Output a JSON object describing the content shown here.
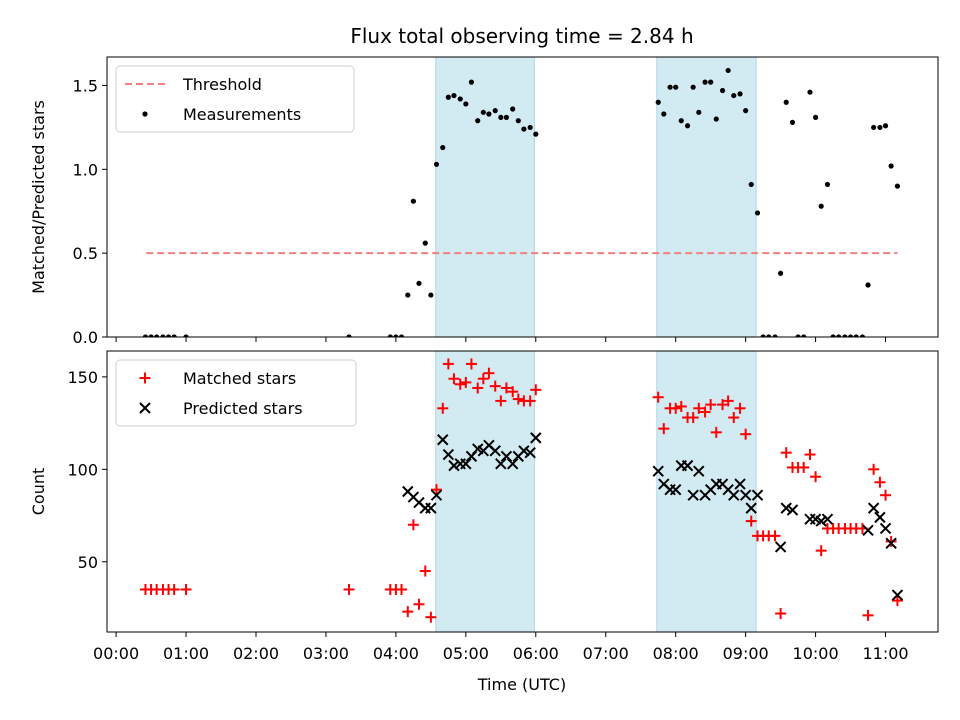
{
  "chart_data": {
    "type": "scatter",
    "title": "Flux total observing time = 2.84 h",
    "xlabel": "Time (UTC)",
    "x_tick_labels": [
      "00:00",
      "01:00",
      "02:00",
      "03:00",
      "04:00",
      "05:00",
      "06:00",
      "07:00",
      "08:00",
      "09:00",
      "10:00",
      "11:00"
    ],
    "xlim": [
      -0.13,
      11.75
    ],
    "shaded_intervals": [
      [
        4.57,
        5.98
      ],
      [
        7.73,
        9.15
      ]
    ],
    "colors": {
      "threshold": "#f08080",
      "measurements": "#000000",
      "matched": "#ff0000",
      "predicted": "#000000",
      "shade": "#add8e6"
    },
    "panels": [
      {
        "ylabel": "Matched/Predicted stars",
        "ylim": [
          0,
          1.67
        ],
        "y_ticks": [
          0.0,
          0.5,
          1.0,
          1.5
        ],
        "y_tick_labels": [
          "0.0",
          "0.5",
          "1.0",
          "1.5"
        ],
        "legend": [
          "Threshold",
          "Measurements"
        ],
        "threshold": {
          "name": "Threshold",
          "value": 0.5,
          "x_range": [
            0.43,
            11.17
          ]
        },
        "series": [
          {
            "name": "Measurements",
            "marker": "dot",
            "points": [
              [
                0.42,
                0
              ],
              [
                0.5,
                0
              ],
              [
                0.58,
                0
              ],
              [
                0.67,
                0
              ],
              [
                0.75,
                0
              ],
              [
                0.83,
                0
              ],
              [
                1.0,
                0
              ],
              [
                3.33,
                0
              ],
              [
                3.92,
                0
              ],
              [
                4.0,
                0
              ],
              [
                4.08,
                0
              ],
              [
                4.17,
                0.25
              ],
              [
                4.25,
                0.81
              ],
              [
                4.33,
                0.32
              ],
              [
                4.42,
                0.56
              ],
              [
                4.5,
                0.25
              ],
              [
                4.58,
                1.03
              ],
              [
                4.67,
                1.13
              ],
              [
                4.75,
                1.43
              ],
              [
                4.83,
                1.44
              ],
              [
                4.92,
                1.42
              ],
              [
                5.0,
                1.39
              ],
              [
                5.08,
                1.52
              ],
              [
                5.17,
                1.29
              ],
              [
                5.25,
                1.34
              ],
              [
                5.33,
                1.33
              ],
              [
                5.42,
                1.35
              ],
              [
                5.5,
                1.31
              ],
              [
                5.58,
                1.31
              ],
              [
                5.67,
                1.36
              ],
              [
                5.75,
                1.29
              ],
              [
                5.83,
                1.24
              ],
              [
                5.92,
                1.25
              ],
              [
                6.0,
                1.21
              ],
              [
                7.75,
                1.4
              ],
              [
                7.83,
                1.33
              ],
              [
                7.92,
                1.49
              ],
              [
                8.0,
                1.49
              ],
              [
                8.08,
                1.29
              ],
              [
                8.17,
                1.26
              ],
              [
                8.25,
                1.49
              ],
              [
                8.33,
                1.34
              ],
              [
                8.42,
                1.52
              ],
              [
                8.5,
                1.52
              ],
              [
                8.58,
                1.3
              ],
              [
                8.67,
                1.47
              ],
              [
                8.75,
                1.59
              ],
              [
                8.83,
                1.44
              ],
              [
                8.92,
                1.45
              ],
              [
                9.0,
                1.35
              ],
              [
                9.08,
                0.91
              ],
              [
                9.17,
                0.74
              ],
              [
                9.25,
                0
              ],
              [
                9.33,
                0
              ],
              [
                9.42,
                0
              ],
              [
                9.5,
                0.38
              ],
              [
                9.58,
                1.4
              ],
              [
                9.67,
                1.28
              ],
              [
                9.75,
                0
              ],
              [
                9.83,
                0
              ],
              [
                9.92,
                1.46
              ],
              [
                10.0,
                1.31
              ],
              [
                10.08,
                0.78
              ],
              [
                10.17,
                0.91
              ],
              [
                10.25,
                0
              ],
              [
                10.33,
                0
              ],
              [
                10.42,
                0
              ],
              [
                10.5,
                0
              ],
              [
                10.58,
                0
              ],
              [
                10.67,
                0
              ],
              [
                10.75,
                0.31
              ],
              [
                10.83,
                1.25
              ],
              [
                10.92,
                1.25
              ],
              [
                11.0,
                1.26
              ],
              [
                11.08,
                1.02
              ],
              [
                11.17,
                0.9
              ]
            ]
          }
        ]
      },
      {
        "ylabel": "Count",
        "ylim": [
          12,
          164
        ],
        "y_ticks": [
          50,
          100,
          150
        ],
        "y_tick_labels": [
          "50",
          "100",
          "150"
        ],
        "legend": [
          "Matched stars",
          "Predicted stars"
        ],
        "series": [
          {
            "name": "Matched stars",
            "marker": "plus",
            "points": [
              [
                0.42,
                35
              ],
              [
                0.5,
                35
              ],
              [
                0.58,
                35
              ],
              [
                0.67,
                35
              ],
              [
                0.75,
                35
              ],
              [
                0.83,
                35
              ],
              [
                1.0,
                35
              ],
              [
                3.33,
                35
              ],
              [
                3.92,
                35
              ],
              [
                4.0,
                35
              ],
              [
                4.08,
                35
              ],
              [
                4.17,
                23
              ],
              [
                4.25,
                70
              ],
              [
                4.33,
                27
              ],
              [
                4.42,
                45
              ],
              [
                4.5,
                20
              ],
              [
                4.58,
                89
              ],
              [
                4.67,
                133
              ],
              [
                4.75,
                157
              ],
              [
                4.83,
                149
              ],
              [
                4.92,
                146
              ],
              [
                5.0,
                147
              ],
              [
                5.08,
                157
              ],
              [
                5.17,
                144
              ],
              [
                5.25,
                149
              ],
              [
                5.33,
                152
              ],
              [
                5.42,
                145
              ],
              [
                5.5,
                137
              ],
              [
                5.58,
                144
              ],
              [
                5.67,
                142
              ],
              [
                5.75,
                138
              ],
              [
                5.83,
                137
              ],
              [
                5.92,
                137
              ],
              [
                6.0,
                143
              ],
              [
                7.75,
                139
              ],
              [
                7.83,
                122
              ],
              [
                7.92,
                133
              ],
              [
                8.0,
                133
              ],
              [
                8.08,
                134
              ],
              [
                8.17,
                128
              ],
              [
                8.25,
                128
              ],
              [
                8.33,
                133
              ],
              [
                8.42,
                131
              ],
              [
                8.5,
                135
              ],
              [
                8.58,
                120
              ],
              [
                8.67,
                135
              ],
              [
                8.75,
                137
              ],
              [
                8.83,
                128
              ],
              [
                8.92,
                133
              ],
              [
                9.0,
                119
              ],
              [
                9.08,
                72
              ],
              [
                9.17,
                64
              ],
              [
                9.25,
                64
              ],
              [
                9.33,
                64
              ],
              [
                9.42,
                64
              ],
              [
                9.5,
                22
              ],
              [
                9.58,
                109
              ],
              [
                9.67,
                101
              ],
              [
                9.75,
                101
              ],
              [
                9.83,
                101
              ],
              [
                9.92,
                108
              ],
              [
                10.0,
                96
              ],
              [
                10.08,
                56
              ],
              [
                10.17,
                68
              ],
              [
                10.25,
                68
              ],
              [
                10.33,
                68
              ],
              [
                10.42,
                68
              ],
              [
                10.5,
                68
              ],
              [
                10.58,
                68
              ],
              [
                10.67,
                68
              ],
              [
                10.75,
                21
              ],
              [
                10.83,
                100
              ],
              [
                10.92,
                93
              ],
              [
                11.0,
                86
              ],
              [
                11.08,
                61
              ],
              [
                11.17,
                29
              ]
            ]
          },
          {
            "name": "Predicted stars",
            "marker": "x",
            "points": [
              [
                4.17,
                88
              ],
              [
                4.25,
                85
              ],
              [
                4.33,
                82
              ],
              [
                4.42,
                79
              ],
              [
                4.5,
                79
              ],
              [
                4.58,
                86
              ],
              [
                4.67,
                116
              ],
              [
                4.75,
                108
              ],
              [
                4.83,
                102
              ],
              [
                4.92,
                103
              ],
              [
                5.0,
                103
              ],
              [
                5.08,
                107
              ],
              [
                5.17,
                111
              ],
              [
                5.25,
                110
              ],
              [
                5.33,
                113
              ],
              [
                5.42,
                110
              ],
              [
                5.5,
                103
              ],
              [
                5.58,
                107
              ],
              [
                5.67,
                103
              ],
              [
                5.75,
                107
              ],
              [
                5.83,
                110
              ],
              [
                5.92,
                109
              ],
              [
                6.0,
                117
              ],
              [
                7.75,
                99
              ],
              [
                7.83,
                92
              ],
              [
                7.92,
                89
              ],
              [
                8.0,
                89
              ],
              [
                8.08,
                102
              ],
              [
                8.17,
                102
              ],
              [
                8.25,
                86
              ],
              [
                8.33,
                99
              ],
              [
                8.42,
                86
              ],
              [
                8.5,
                89
              ],
              [
                8.58,
                92
              ],
              [
                8.67,
                92
              ],
              [
                8.75,
                89
              ],
              [
                8.83,
                86
              ],
              [
                8.92,
                92
              ],
              [
                9.0,
                86
              ],
              [
                9.08,
                79
              ],
              [
                9.17,
                86
              ],
              [
                9.5,
                58
              ],
              [
                9.58,
                79
              ],
              [
                9.67,
                78
              ],
              [
                9.92,
                73
              ],
              [
                10.0,
                73
              ],
              [
                10.08,
                72
              ],
              [
                10.17,
                73
              ],
              [
                10.75,
                67
              ],
              [
                10.83,
                79
              ],
              [
                10.92,
                74
              ],
              [
                11.0,
                68
              ],
              [
                11.08,
                60
              ],
              [
                11.17,
                32
              ]
            ]
          }
        ]
      }
    ]
  }
}
